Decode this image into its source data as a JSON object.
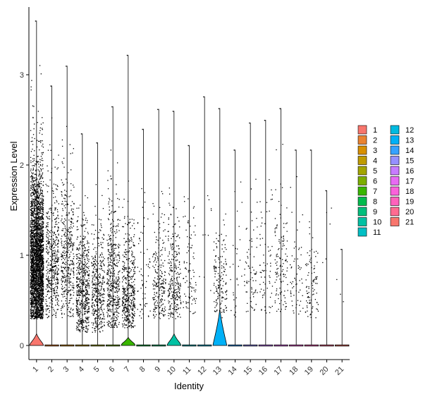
{
  "chart_data": {
    "type": "violin",
    "xlabel": "Identity",
    "ylabel": "Expression Level",
    "categories": [
      "1",
      "2",
      "3",
      "4",
      "5",
      "6",
      "7",
      "8",
      "9",
      "10",
      "11",
      "12",
      "13",
      "14",
      "15",
      "16",
      "17",
      "18",
      "19",
      "20",
      "21"
    ],
    "yticks": [
      0,
      1,
      2,
      3
    ],
    "ylim": [
      -0.15,
      3.75
    ],
    "grid": false,
    "legend_position": "right",
    "series": [
      {
        "name": "1",
        "color": "#F8766D",
        "max": 3.6,
        "points": 3000,
        "mean": 0.95,
        "sd": 0.55,
        "lo": 0.3,
        "violin_height": 0.13
      },
      {
        "name": "2",
        "color": "#EA8331",
        "max": 2.88,
        "points": 450,
        "mean": 0.95,
        "sd": 0.5,
        "lo": 0.3,
        "violin_height": 0
      },
      {
        "name": "3",
        "color": "#D89000",
        "max": 3.1,
        "points": 400,
        "mean": 1.0,
        "sd": 0.5,
        "lo": 0.3,
        "violin_height": 0
      },
      {
        "name": "4",
        "color": "#C09B00",
        "max": 2.35,
        "points": 550,
        "mean": 0.6,
        "sd": 0.4,
        "lo": 0.15,
        "violin_height": 0
      },
      {
        "name": "5",
        "color": "#A3A500",
        "max": 2.25,
        "points": 380,
        "mean": 0.6,
        "sd": 0.35,
        "lo": 0.15,
        "violin_height": 0
      },
      {
        "name": "6",
        "color": "#7CAE00",
        "max": 2.65,
        "points": 450,
        "mean": 0.7,
        "sd": 0.45,
        "lo": 0.2,
        "violin_height": 0
      },
      {
        "name": "7",
        "color": "#39B600",
        "max": 3.22,
        "points": 450,
        "mean": 0.6,
        "sd": 0.4,
        "lo": 0.2,
        "violin_height": 0.09
      },
      {
        "name": "8",
        "color": "#00BB4E",
        "max": 2.4,
        "points": 60,
        "mean": 0.8,
        "sd": 0.5,
        "lo": 0.3,
        "violin_height": 0
      },
      {
        "name": "9",
        "color": "#00BF7D",
        "max": 2.62,
        "points": 220,
        "mean": 0.7,
        "sd": 0.4,
        "lo": 0.3,
        "violin_height": 0
      },
      {
        "name": "10",
        "color": "#00C1A3",
        "max": 2.6,
        "points": 260,
        "mean": 0.65,
        "sd": 0.4,
        "lo": 0.3,
        "violin_height": 0.13
      },
      {
        "name": "11",
        "color": "#00BFC4",
        "max": 2.22,
        "points": 90,
        "mean": 0.75,
        "sd": 0.45,
        "lo": 0.35,
        "violin_height": 0
      },
      {
        "name": "12",
        "color": "#00BAE0",
        "max": 2.76,
        "points": 10,
        "mean": 1.2,
        "sd": 0.6,
        "lo": 0.5,
        "violin_height": 0
      },
      {
        "name": "13",
        "color": "#00B0F6",
        "max": 2.63,
        "points": 150,
        "mean": 0.7,
        "sd": 0.35,
        "lo": 0.3,
        "violin_height": 0.4
      },
      {
        "name": "14",
        "color": "#35A2FF",
        "max": 2.17,
        "points": 30,
        "mean": 0.7,
        "sd": 0.45,
        "lo": 0.3,
        "violin_height": 0
      },
      {
        "name": "15",
        "color": "#9590FF",
        "max": 2.47,
        "points": 70,
        "mean": 0.8,
        "sd": 0.45,
        "lo": 0.35,
        "violin_height": 0
      },
      {
        "name": "16",
        "color": "#C77CFF",
        "max": 2.5,
        "points": 70,
        "mean": 0.8,
        "sd": 0.45,
        "lo": 0.35,
        "violin_height": 0
      },
      {
        "name": "17",
        "color": "#E76BF3",
        "max": 2.63,
        "points": 120,
        "mean": 0.9,
        "sd": 0.45,
        "lo": 0.35,
        "violin_height": 0
      },
      {
        "name": "18",
        "color": "#FA62DB",
        "max": 2.17,
        "points": 60,
        "mean": 0.7,
        "sd": 0.4,
        "lo": 0.35,
        "violin_height": 0
      },
      {
        "name": "19",
        "color": "#FF62BC",
        "max": 2.17,
        "points": 90,
        "mean": 0.6,
        "sd": 0.3,
        "lo": 0.3,
        "violin_height": 0
      },
      {
        "name": "20",
        "color": "#FF6C91",
        "max": 1.72,
        "points": 5,
        "mean": 1.2,
        "sd": 0.4,
        "lo": 0.6,
        "violin_height": 0
      },
      {
        "name": "21",
        "color": "#F8766D",
        "max": 1.07,
        "points": 3,
        "mean": 0.5,
        "sd": 0.2,
        "lo": 0.3,
        "violin_height": 0
      }
    ]
  }
}
